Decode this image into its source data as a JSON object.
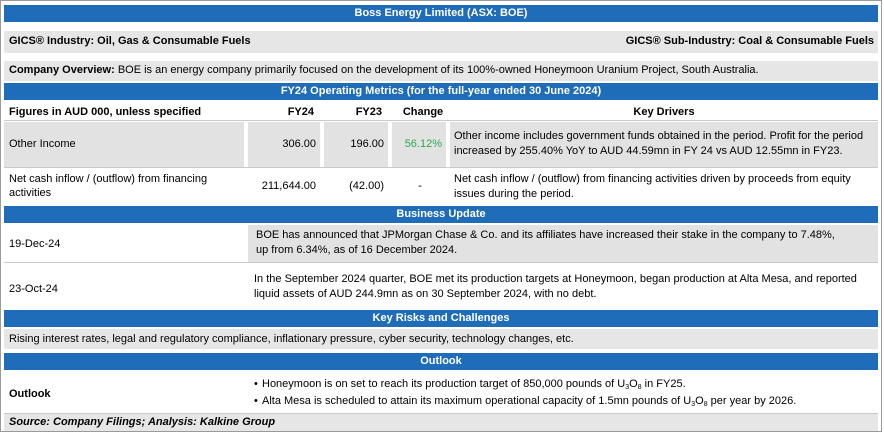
{
  "title": "Boss Energy Limited (ASX: BOE)",
  "gics": {
    "industry": "GICS® Industry: Oil, Gas & Consumable Fuels",
    "sub_industry": "GICS® Sub-Industry: Coal & Consumable Fuels"
  },
  "overview": {
    "label": "Company Overview:",
    "text": "BOE is an energy company primarily focused on the development of its 100%-owned Honeymoon Uranium Project, South Australia."
  },
  "operating_metrics": {
    "title": "FY24 Operating Metrics (for the full-year ended 30 June 2024)",
    "headers": [
      "Figures in AUD 000, unless specified",
      "FY24",
      "FY23",
      "Change",
      "Key Drivers"
    ],
    "rows": [
      {
        "label": "Other Income",
        "fy24": "306.00",
        "fy23": "196.00",
        "change": "56.12%",
        "drivers": "Other income includes government funds obtained in the period. Profit for the period increased by 255.40% YoY to AUD 44.59mn in FY 24 vs AUD 12.55mn in FY23."
      },
      {
        "label": "Net cash inflow / (outflow) from financing activities",
        "fy24": "211,644.00",
        "fy23": "(42.00)",
        "change": "-",
        "drivers": "Net cash inflow / (outflow) from financing activities driven by proceeds from equity issues during the period."
      }
    ]
  },
  "business_update": {
    "title": "Business Update",
    "items": [
      {
        "date": "19-Dec-24",
        "text": "BOE has announced that JPMorgan Chase & Co. and its affiliates have increased their stake in the company to 7.48%, up from 6.34%, as of 16 December 2024."
      },
      {
        "date": "23-Oct-24",
        "text": "In the September 2024 quarter, BOE met its production targets at Honeymoon, began production at Alta Mesa, and reported liquid assets of AUD 244.9mn as on 30 September 2024, with no debt."
      }
    ]
  },
  "risks": {
    "title": "Key Risks and Challenges",
    "text": "Rising interest rates, legal and regulatory compliance, inflationary pressure, cyber security, technology changes, etc."
  },
  "outlook": {
    "title": "Outlook",
    "label": "Outlook",
    "bullets": [
      {
        "pre": "Honeymoon is on set to reach its production target of 850,000 pounds of U",
        "sub1": "3",
        "mid": "O",
        "sub2": "8",
        "post": " in FY25."
      },
      {
        "pre": "Alta Mesa is scheduled to attain its maximum operational capacity of 1.5mn pounds of U",
        "sub1": "3",
        "mid": "O",
        "sub2": "8",
        "post": " per year by 2026."
      }
    ]
  },
  "source": "Source: Company Filings; Analysis: Kalkine Group",
  "colors": {
    "header_bar": "#1f6cb8",
    "change_positive": "#2fa84f",
    "grey_row": "#e6e6e6"
  }
}
